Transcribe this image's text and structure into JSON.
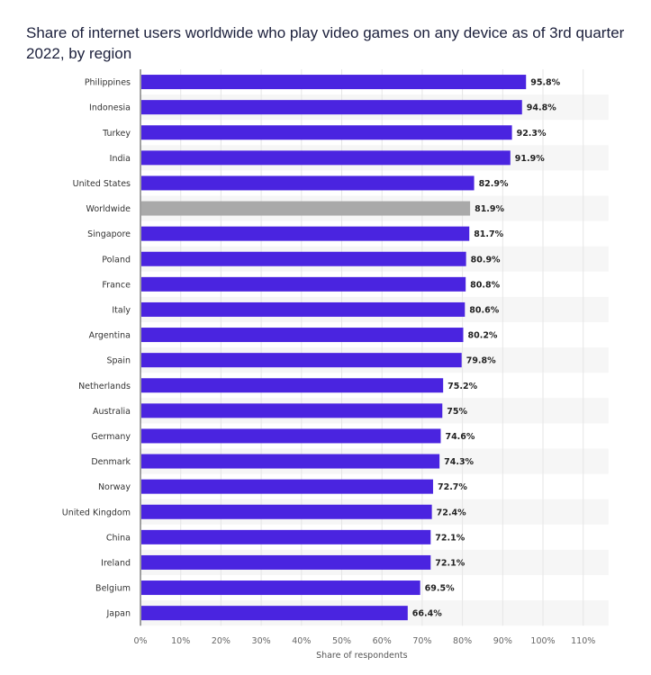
{
  "chart_data": {
    "type": "bar",
    "orientation": "horizontal",
    "title": "Share of internet users worldwide who play video games on any device as of 3rd quarter 2022, by region",
    "xlabel": "Share of respondents",
    "ylabel": "",
    "xlim": [
      0,
      110
    ],
    "xticks": [
      "0%",
      "10%",
      "20%",
      "30%",
      "40%",
      "50%",
      "60%",
      "70%",
      "80%",
      "90%",
      "100%",
      "110%"
    ],
    "grid": true,
    "categories": [
      "Philippines",
      "Indonesia",
      "Turkey",
      "India",
      "United States",
      "Worldwide",
      "Singapore",
      "Poland",
      "France",
      "Italy",
      "Argentina",
      "Spain",
      "Netherlands",
      "Australia",
      "Germany",
      "Denmark",
      "Norway",
      "United Kingdom",
      "China",
      "Ireland",
      "Belgium",
      "Japan"
    ],
    "values": [
      95.8,
      94.8,
      92.3,
      91.9,
      82.9,
      81.9,
      81.7,
      80.9,
      80.8,
      80.6,
      80.2,
      79.8,
      75.2,
      75,
      74.6,
      74.3,
      72.7,
      72.4,
      72.1,
      72.1,
      69.5,
      66.4
    ],
    "value_labels": [
      "95.8%",
      "94.8%",
      "92.3%",
      "91.9%",
      "82.9%",
      "81.9%",
      "81.7%",
      "80.9%",
      "80.8%",
      "80.6%",
      "80.2%",
      "79.8%",
      "75.2%",
      "75%",
      "74.6%",
      "74.3%",
      "72.7%",
      "72.4%",
      "72.1%",
      "72.1%",
      "69.5%",
      "66.4%"
    ],
    "highlight_category": "Worldwide",
    "colors": {
      "bar": "#4a24e0",
      "highlight": "#a9a9a9",
      "grid": "#e6e6e6",
      "stripe": "#f6f6f6"
    }
  }
}
